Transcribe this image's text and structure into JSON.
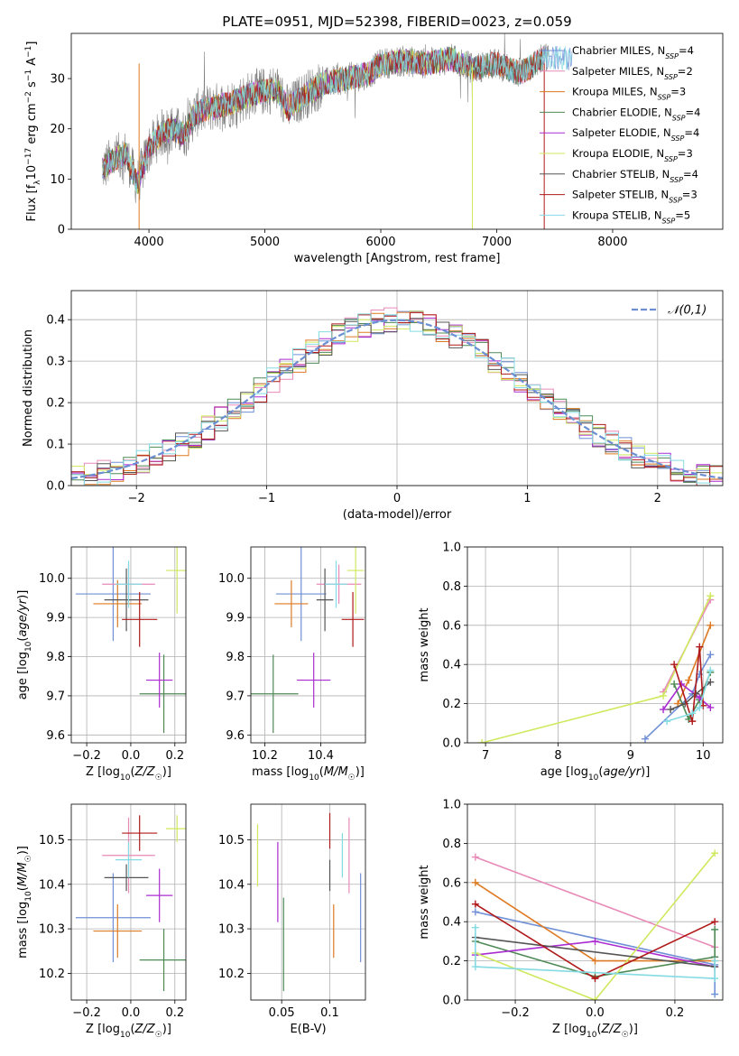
{
  "figure": {
    "title": "PLATE=0951, MJD=52398, FIBERID=0023, z=0.059"
  },
  "colors": {
    "Chabrier MILES": "#6f8fd6",
    "Salpeter MILES": "#e88ab8",
    "Kroupa MILES": "#dd7a22",
    "Chabrier ELODIE": "#4f8a55",
    "Salpeter ELODIE": "#aa2bd0",
    "Kroupa ELODIE": "#cfe95f",
    "Chabrier STELIB": "#555555",
    "Salpeter STELIB": "#b01919",
    "Kroupa STELIB": "#85dbe3",
    "data": "#808080",
    "normal_curve": "#6b8fd2"
  },
  "chart_data": [
    {
      "id": "spectrum",
      "type": "line",
      "xlabel": "wavelength [Angstrom, rest frame]",
      "ylabel": "Flux [f_λ10^-17 erg cm^-2 s^-1 A^-1]",
      "xlim": [
        3330,
        8950
      ],
      "ylim": [
        0,
        39
      ],
      "xticks": [
        4000,
        5000,
        6000,
        7000,
        8000
      ],
      "yticks": [
        0,
        10,
        20,
        30
      ],
      "grid": false,
      "legend_position": "lower-right",
      "legend": [
        {
          "name": "Chabrier MILES",
          "nssp": "4"
        },
        {
          "name": "Salpeter MILES",
          "nssp": "2"
        },
        {
          "name": "Kroupa MILES",
          "nssp": "3"
        },
        {
          "name": "Chabrier ELODIE",
          "nssp": "4"
        },
        {
          "name": "Salpeter ELODIE",
          "nssp": "4"
        },
        {
          "name": "Kroupa ELODIE",
          "nssp": "3"
        },
        {
          "name": "Chabrier STELIB",
          "nssp": "4"
        },
        {
          "name": "Salpeter STELIB",
          "nssp": "3"
        },
        {
          "name": "Kroupa STELIB",
          "nssp": "5"
        }
      ],
      "continuum_x": [
        3600,
        3700,
        3800,
        3900,
        4000,
        4100,
        4200,
        4300,
        4400,
        4500,
        4700,
        4900,
        5100,
        5200,
        5300,
        5500,
        5700,
        5900,
        6000,
        6200,
        6400,
        6600,
        6800,
        7000,
        7200,
        7400
      ],
      "continuum_y": [
        12,
        14,
        15,
        9,
        16,
        19,
        20,
        19,
        23,
        24,
        25,
        27,
        28,
        24,
        26,
        29,
        30,
        31,
        33,
        33.5,
        33,
        34,
        32,
        33,
        31,
        34
      ]
    },
    {
      "id": "residual_hist",
      "type": "line",
      "xlabel": "(data-model)/error",
      "ylabel": "Normed distribution",
      "xlim": [
        -2.5,
        2.5
      ],
      "ylim": [
        0,
        0.47
      ],
      "xticks": [
        -2,
        -1,
        0,
        1,
        2
      ],
      "yticks": [
        0.0,
        0.1,
        0.2,
        0.3,
        0.4
      ],
      "grid": true,
      "legend_position": "upper-right",
      "legend": [
        "𝒩(0,1)"
      ],
      "bin_width": 0.1
    },
    {
      "id": "age_vs_Z",
      "type": "scatter",
      "xlabel": "Z [log10(Z/Z☉)]",
      "ylabel": "age  [log10(age/yr)]",
      "xlim": [
        -0.27,
        0.25
      ],
      "ylim": [
        9.58,
        10.08
      ],
      "xticks": [
        -0.2,
        0.0,
        0.2
      ],
      "yticks": [
        9.6,
        9.7,
        9.8,
        9.9,
        10.0
      ],
      "grid": true,
      "points": [
        {
          "model": "Chabrier MILES",
          "x": -0.08,
          "xerr": 0.17,
          "y": 9.96,
          "yerr": 0.12
        },
        {
          "model": "Salpeter MILES",
          "x": -0.01,
          "xerr": 0.12,
          "y": 9.985,
          "yerr": 0.05
        },
        {
          "model": "Kroupa MILES",
          "x": -0.06,
          "xerr": 0.11,
          "y": 9.935,
          "yerr": 0.06
        },
        {
          "model": "Chabrier ELODIE",
          "x": 0.15,
          "xerr": 0.11,
          "y": 9.705,
          "yerr": 0.1
        },
        {
          "model": "Salpeter ELODIE",
          "x": 0.13,
          "xerr": 0.06,
          "y": 9.74,
          "yerr": 0.07
        },
        {
          "model": "Kroupa ELODIE",
          "x": 0.21,
          "xerr": 0.05,
          "y": 10.02,
          "yerr": 0.11
        },
        {
          "model": "Chabrier STELIB",
          "x": -0.02,
          "xerr": 0.1,
          "y": 9.945,
          "yerr": 0.08
        },
        {
          "model": "Salpeter STELIB",
          "x": 0.04,
          "xerr": 0.08,
          "y": 9.895,
          "yerr": 0.07
        },
        {
          "model": "Kroupa STELIB",
          "x": -0.01,
          "xerr": 0.06,
          "y": 9.985,
          "yerr": 0.06
        }
      ]
    },
    {
      "id": "age_vs_mass",
      "type": "scatter",
      "xlabel": "mass [log10(M/M☉)]",
      "ylabel": "",
      "xlim": [
        10.15,
        10.56
      ],
      "ylim": [
        9.58,
        10.08
      ],
      "xticks": [
        10.2,
        10.4
      ],
      "yticks": [
        9.6,
        9.7,
        9.8,
        9.9,
        10.0
      ],
      "grid": true,
      "points": [
        {
          "model": "Chabrier MILES",
          "x": 10.33,
          "xerr": 0.09,
          "y": 9.96,
          "yerr": 0.12
        },
        {
          "model": "Salpeter MILES",
          "x": 10.465,
          "xerr": 0.08,
          "y": 9.985,
          "yerr": 0.05
        },
        {
          "model": "Kroupa MILES",
          "x": 10.295,
          "xerr": 0.06,
          "y": 9.935,
          "yerr": 0.06
        },
        {
          "model": "Chabrier ELODIE",
          "x": 10.23,
          "xerr": 0.09,
          "y": 9.705,
          "yerr": 0.1
        },
        {
          "model": "Salpeter ELODIE",
          "x": 10.375,
          "xerr": 0.06,
          "y": 9.74,
          "yerr": 0.07
        },
        {
          "model": "Kroupa ELODIE",
          "x": 10.525,
          "xerr": 0.03,
          "y": 10.02,
          "yerr": 0.11
        },
        {
          "model": "Chabrier STELIB",
          "x": 10.415,
          "xerr": 0.03,
          "y": 9.945,
          "yerr": 0.08
        },
        {
          "model": "Salpeter STELIB",
          "x": 10.515,
          "xerr": 0.04,
          "y": 9.895,
          "yerr": 0.07
        },
        {
          "model": "Kroupa STELIB",
          "x": 10.455,
          "xerr": 0.04,
          "y": 9.985,
          "yerr": 0.06
        }
      ]
    },
    {
      "id": "weight_vs_age",
      "type": "line",
      "xlabel": "age  [log10(age/yr)]",
      "ylabel": "mass weight",
      "xlim": [
        6.75,
        10.27
      ],
      "ylim": [
        0,
        1
      ],
      "xticks": [
        7,
        8,
        9,
        10
      ],
      "yticks": [
        0.0,
        0.2,
        0.4,
        0.6,
        0.8,
        1.0
      ],
      "grid": true,
      "series": [
        {
          "model": "Chabrier MILES",
          "x": [
            9.2,
            9.85,
            9.95,
            10.1
          ],
          "y": [
            0.02,
            0.25,
            0.35,
            0.45
          ]
        },
        {
          "model": "Salpeter MILES",
          "x": [
            9.45,
            10.1
          ],
          "y": [
            0.26,
            0.73
          ]
        },
        {
          "model": "Kroupa MILES",
          "x": [
            9.65,
            9.8,
            10.1
          ],
          "y": [
            0.2,
            0.32,
            0.6
          ]
        },
        {
          "model": "Chabrier ELODIE",
          "x": [
            9.6,
            9.8,
            9.95,
            10.1
          ],
          "y": [
            0.3,
            0.12,
            0.22,
            0.36
          ]
        },
        {
          "model": "Salpeter ELODIE",
          "x": [
            9.45,
            9.7,
            9.95,
            10.1
          ],
          "y": [
            0.17,
            0.3,
            0.23,
            0.18
          ]
        },
        {
          "model": "Kroupa ELODIE",
          "x": [
            6.95,
            9.45,
            10.1
          ],
          "y": [
            0.0,
            0.24,
            0.75
          ]
        },
        {
          "model": "Chabrier STELIB",
          "x": [
            9.55,
            9.75,
            9.9,
            10.1
          ],
          "y": [
            0.17,
            0.2,
            0.25,
            0.31
          ]
        },
        {
          "model": "Salpeter STELIB",
          "x": [
            9.6,
            9.85,
            9.95,
            10.0
          ],
          "y": [
            0.4,
            0.11,
            0.49,
            0.19
          ]
        },
        {
          "model": "Kroupa STELIB",
          "x": [
            9.5,
            9.85,
            9.95,
            10.1
          ],
          "y": [
            0.11,
            0.15,
            0.18,
            0.37
          ]
        }
      ]
    },
    {
      "id": "mass_vs_Z",
      "type": "scatter",
      "xlabel": "Z [log10(Z/Z☉)]",
      "ylabel": "mass [log10(M/M☉)]",
      "xlim": [
        -0.27,
        0.25
      ],
      "ylim": [
        10.14,
        10.58
      ],
      "xticks": [
        -0.2,
        0.0,
        0.2
      ],
      "yticks": [
        10.2,
        10.3,
        10.4,
        10.5
      ],
      "grid": true,
      "points": [
        {
          "model": "Chabrier MILES",
          "x": -0.08,
          "xerr": 0.17,
          "y": 10.325,
          "yerr": 0.1
        },
        {
          "model": "Salpeter MILES",
          "x": -0.01,
          "xerr": 0.12,
          "y": 10.465,
          "yerr": 0.085
        },
        {
          "model": "Kroupa MILES",
          "x": -0.06,
          "xerr": 0.11,
          "y": 10.295,
          "yerr": 0.06
        },
        {
          "model": "Chabrier ELODIE",
          "x": 0.15,
          "xerr": 0.11,
          "y": 10.23,
          "yerr": 0.07
        },
        {
          "model": "Salpeter ELODIE",
          "x": 0.13,
          "xerr": 0.06,
          "y": 10.375,
          "yerr": 0.06
        },
        {
          "model": "Kroupa ELODIE",
          "x": 0.21,
          "xerr": 0.05,
          "y": 10.525,
          "yerr": 0.03
        },
        {
          "model": "Chabrier STELIB",
          "x": -0.02,
          "xerr": 0.1,
          "y": 10.415,
          "yerr": 0.03
        },
        {
          "model": "Salpeter STELIB",
          "x": 0.04,
          "xerr": 0.08,
          "y": 10.515,
          "yerr": 0.04
        },
        {
          "model": "Kroupa STELIB",
          "x": -0.01,
          "xerr": 0.06,
          "y": 10.455,
          "yerr": 0.04
        }
      ]
    },
    {
      "id": "mass_vs_ebv",
      "type": "scatter",
      "xlabel": "E(B-V)",
      "ylabel": "",
      "xlim": [
        0.018,
        0.137
      ],
      "ylim": [
        10.14,
        10.58
      ],
      "xticks": [
        0.05,
        0.1
      ],
      "yticks": [
        10.2,
        10.3,
        10.4,
        10.5
      ],
      "grid": true,
      "points": [
        {
          "model": "Chabrier MILES",
          "x": 0.132,
          "y": 10.325,
          "yerr": 0.1
        },
        {
          "model": "Salpeter MILES",
          "x": 0.12,
          "y": 10.465,
          "yerr": 0.085
        },
        {
          "model": "Kroupa MILES",
          "x": 0.104,
          "y": 10.295,
          "yerr": 0.06
        },
        {
          "model": "Chabrier ELODIE",
          "x": 0.052,
          "y": 10.265,
          "yerr": 0.105
        },
        {
          "model": "Salpeter ELODIE",
          "x": 0.046,
          "y": 10.405,
          "yerr": 0.09
        },
        {
          "model": "Kroupa ELODIE",
          "x": 0.025,
          "y": 10.465,
          "yerr": 0.07
        },
        {
          "model": "Chabrier STELIB",
          "x": 0.1,
          "y": 10.42,
          "yerr": 0.035
        },
        {
          "model": "Salpeter STELIB",
          "x": 0.1,
          "y": 10.52,
          "yerr": 0.04
        },
        {
          "model": "Kroupa STELIB",
          "x": 0.113,
          "y": 10.465,
          "yerr": 0.05
        }
      ]
    },
    {
      "id": "weight_vs_Z",
      "type": "line",
      "xlabel": "Z [log10(Z/Z☉)]",
      "ylabel": "mass weight",
      "xlim": [
        -0.32,
        0.32
      ],
      "ylim": [
        0,
        1
      ],
      "xticks": [
        -0.2,
        0.0,
        0.2
      ],
      "yticks": [
        0.0,
        0.2,
        0.4,
        0.6,
        0.8,
        1.0
      ],
      "grid": true,
      "series": [
        {
          "model": "Chabrier MILES",
          "x": [
            -0.3,
            0.3,
            0.3
          ],
          "y": [
            0.45,
            0.18,
            0.03
          ]
        },
        {
          "model": "Salpeter MILES",
          "x": [
            -0.3,
            0.3
          ],
          "y": [
            0.73,
            0.27
          ]
        },
        {
          "model": "Kroupa MILES",
          "x": [
            -0.3,
            0.0,
            0.3
          ],
          "y": [
            0.6,
            0.2,
            0.2
          ]
        },
        {
          "model": "Chabrier ELODIE",
          "x": [
            -0.3,
            0.0,
            0.3,
            0.3
          ],
          "y": [
            0.3,
            0.12,
            0.22,
            0.36
          ]
        },
        {
          "model": "Salpeter ELODIE",
          "x": [
            -0.3,
            0.0,
            0.3
          ],
          "y": [
            0.23,
            0.3,
            0.17
          ]
        },
        {
          "model": "Kroupa ELODIE",
          "x": [
            -0.3,
            0.0,
            0.3
          ],
          "y": [
            0.24,
            0.0,
            0.75
          ]
        },
        {
          "model": "Chabrier STELIB",
          "x": [
            -0.3,
            0.3
          ],
          "y": [
            0.32,
            0.17
          ]
        },
        {
          "model": "Salpeter STELIB",
          "x": [
            -0.3,
            0.0,
            0.3
          ],
          "y": [
            0.49,
            0.11,
            0.4
          ]
        },
        {
          "model": "Kroupa STELIB",
          "x": [
            -0.3,
            -0.3,
            0.3,
            0.3
          ],
          "y": [
            0.37,
            0.17,
            0.11,
            0.2
          ]
        }
      ]
    }
  ]
}
